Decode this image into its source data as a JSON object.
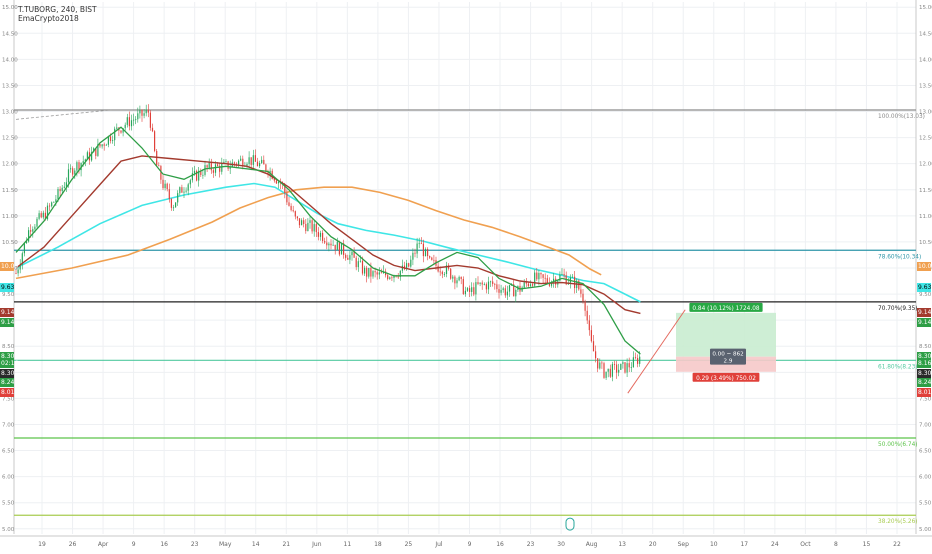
{
  "header": {
    "symbol_line": "T.TUBORG, 240, BIST",
    "indicator_name": "EmaCrypto2018"
  },
  "colors": {
    "background": "#ffffff",
    "grid": "#eef0f3",
    "candle_up": "#26a65b",
    "candle_down": "#e0403a",
    "ema_fast": "#2e9e46",
    "ema_mid": "#a33a2e",
    "ema_cyan": "#3fe6e6",
    "ema_orange": "#f0a050",
    "fib_line": "#8a8a8a",
    "fib_786": "#2d95a8",
    "fib_707": "#222222",
    "fib_618": "#52c9a0",
    "fib_500": "#5cc34a",
    "fib_382": "#a8cc50",
    "profit_zone": "#c9ecd0",
    "loss_zone": "#f6c9c9",
    "trend_line": "#e46a5f"
  },
  "chart_data": {
    "type": "candlestick",
    "title": "T.TUBORG, 240, BIST",
    "ylim": [
      4.9,
      15.1
    ],
    "y_axis_ticks": [
      "15.00",
      "14.50",
      "14.00",
      "13.50",
      "13.00",
      "12.50",
      "12.00",
      "11.50",
      "11.00",
      "10.50",
      "10.00",
      "9.50",
      "9.00",
      "8.50",
      "8.00",
      "7.50",
      "7.00",
      "6.50",
      "6.00",
      "5.50",
      "5.00"
    ],
    "x_axis_ticks": [
      "19",
      "26",
      "Apr",
      "9",
      "16",
      "23",
      "May",
      "14",
      "21",
      "Jun",
      "11",
      "18",
      "25",
      "Jul",
      "9",
      "16",
      "23",
      "30",
      "Aug",
      "13",
      "20",
      "Sep",
      "10",
      "17",
      "24",
      "Oct",
      "8",
      "15",
      "22"
    ],
    "ema_fast": [
      [
        0,
        10.3
      ],
      [
        20,
        10.9
      ],
      [
        40,
        11.7
      ],
      [
        60,
        12.4
      ],
      [
        75,
        12.7
      ],
      [
        90,
        12.3
      ],
      [
        105,
        11.8
      ],
      [
        120,
        11.7
      ],
      [
        135,
        11.9
      ],
      [
        150,
        11.95
      ],
      [
        165,
        11.9
      ],
      [
        180,
        11.85
      ],
      [
        195,
        11.5
      ],
      [
        210,
        11.0
      ],
      [
        225,
        10.6
      ],
      [
        240,
        10.35
      ],
      [
        255,
        10.0
      ],
      [
        270,
        9.85
      ],
      [
        285,
        9.85
      ],
      [
        300,
        10.1
      ],
      [
        315,
        10.3
      ],
      [
        330,
        10.2
      ],
      [
        345,
        9.8
      ],
      [
        360,
        9.6
      ],
      [
        375,
        9.65
      ],
      [
        390,
        9.8
      ],
      [
        405,
        9.7
      ],
      [
        420,
        9.3
      ],
      [
        435,
        8.6
      ],
      [
        446,
        8.35
      ]
    ],
    "ema_mid": [
      [
        0,
        10.0
      ],
      [
        20,
        10.4
      ],
      [
        40,
        11.0
      ],
      [
        60,
        11.6
      ],
      [
        75,
        12.05
      ],
      [
        90,
        12.15
      ],
      [
        110,
        12.1
      ],
      [
        130,
        12.05
      ],
      [
        150,
        12.0
      ],
      [
        165,
        11.95
      ],
      [
        180,
        11.8
      ],
      [
        195,
        11.55
      ],
      [
        210,
        11.2
      ],
      [
        225,
        10.85
      ],
      [
        240,
        10.55
      ],
      [
        255,
        10.25
      ],
      [
        270,
        10.05
      ],
      [
        285,
        9.95
      ],
      [
        300,
        10.0
      ],
      [
        315,
        10.05
      ],
      [
        330,
        10.0
      ],
      [
        345,
        9.85
      ],
      [
        360,
        9.75
      ],
      [
        375,
        9.7
      ],
      [
        390,
        9.72
      ],
      [
        405,
        9.68
      ],
      [
        420,
        9.5
      ],
      [
        435,
        9.2
      ],
      [
        446,
        9.13
      ]
    ],
    "ema_cyan": [
      [
        0,
        10.0
      ],
      [
        30,
        10.4
      ],
      [
        60,
        10.85
      ],
      [
        90,
        11.2
      ],
      [
        120,
        11.4
      ],
      [
        150,
        11.55
      ],
      [
        170,
        11.62
      ],
      [
        185,
        11.55
      ],
      [
        200,
        11.3
      ],
      [
        215,
        11.05
      ],
      [
        230,
        10.85
      ],
      [
        250,
        10.72
      ],
      [
        270,
        10.63
      ],
      [
        290,
        10.52
      ],
      [
        310,
        10.38
      ],
      [
        330,
        10.25
      ],
      [
        350,
        10.12
      ],
      [
        370,
        9.98
      ],
      [
        390,
        9.86
      ],
      [
        405,
        9.76
      ],
      [
        420,
        9.7
      ],
      [
        435,
        9.5
      ],
      [
        446,
        9.35
      ]
    ],
    "ema_orange": [
      [
        0,
        9.8
      ],
      [
        40,
        10.0
      ],
      [
        80,
        10.25
      ],
      [
        110,
        10.55
      ],
      [
        140,
        10.88
      ],
      [
        160,
        11.15
      ],
      [
        180,
        11.35
      ],
      [
        200,
        11.5
      ],
      [
        220,
        11.55
      ],
      [
        240,
        11.55
      ],
      [
        260,
        11.45
      ],
      [
        280,
        11.3
      ],
      [
        300,
        11.1
      ],
      [
        320,
        10.92
      ],
      [
        340,
        10.78
      ],
      [
        360,
        10.6
      ],
      [
        380,
        10.4
      ],
      [
        395,
        10.25
      ],
      [
        410,
        9.98
      ],
      [
        418,
        9.87
      ]
    ],
    "fibonacci": [
      {
        "level": "100.00%",
        "price": 13.03,
        "label": "100.00%(13.03)",
        "color_key": "fib_line"
      },
      {
        "level": "78.60%",
        "price": 10.34,
        "label": "78.60%(10.34)",
        "color_key": "fib_786"
      },
      {
        "level": "70.70%",
        "price": 9.35,
        "label": "70.70%(9.35)",
        "color_key": "fib_707"
      },
      {
        "level": "61.80%",
        "price": 8.23,
        "label": "61.80%(8.23)",
        "color_key": "fib_618"
      },
      {
        "level": "50.00%",
        "price": 6.74,
        "label": "50.00%(6.74)",
        "color_key": "fib_500"
      },
      {
        "level": "38.20%",
        "price": 5.26,
        "label": "38.20%(5.26)",
        "color_key": "fib_382"
      }
    ],
    "position": {
      "entry": 8.3,
      "target": 9.14,
      "stop": 8.01,
      "target_label": "0.84 (10.12%) 1724.08",
      "center_label_1": "0.00 ~ 862",
      "center_label_2": "2.9",
      "stop_label": "0.29 (3.49%) 750.02"
    },
    "price_badges_left": [
      {
        "text": "10.03",
        "price": 10.03,
        "bg": "#f0a050",
        "fg": "#ffffff"
      },
      {
        "text": "9.63",
        "price": 9.63,
        "bg": "#3fe6e6",
        "fg": "#000000"
      },
      {
        "text": "9.14",
        "price": 9.14,
        "bg": "#a33a2e",
        "fg": "#ffffff"
      },
      {
        "text": "9.14",
        "price": 8.96,
        "bg": "#2e9e46",
        "fg": "#ffffff"
      },
      {
        "text": "8.30",
        "price": 8.3,
        "bg": "#2e9e46",
        "fg": "#ffffff"
      },
      {
        "text": "02:16",
        "price": 8.16,
        "bg": "#2e9e46",
        "fg": "#ffffff"
      },
      {
        "text": "8.30",
        "price": 7.97,
        "bg": "#2a2a2a",
        "fg": "#ffffff"
      },
      {
        "text": "8.24",
        "price": 7.8,
        "bg": "#2e9e46",
        "fg": "#ffffff"
      },
      {
        "text": "8.01",
        "price": 7.62,
        "bg": "#e0403a",
        "fg": "#ffffff"
      }
    ],
    "price_badges_right": [
      {
        "text": "10.03",
        "price": 10.03,
        "bg": "#f0a050",
        "fg": "#ffffff"
      },
      {
        "text": "9.63",
        "price": 9.63,
        "bg": "#3fe6e6",
        "fg": "#000000"
      },
      {
        "text": "9.14",
        "price": 9.14,
        "bg": "#a33a2e",
        "fg": "#ffffff"
      },
      {
        "text": "9.14",
        "price": 8.96,
        "bg": "#2e9e46",
        "fg": "#ffffff"
      },
      {
        "text": "8.30",
        "price": 8.3,
        "bg": "#2e9e46",
        "fg": "#ffffff"
      },
      {
        "text": "8.16",
        "price": 8.16,
        "bg": "#2e9e46",
        "fg": "#ffffff"
      },
      {
        "text": "8.30",
        "price": 7.97,
        "bg": "#2a2a2a",
        "fg": "#ffffff"
      },
      {
        "text": "8.24",
        "price": 7.8,
        "bg": "#2e9e46",
        "fg": "#ffffff"
      },
      {
        "text": "8.01",
        "price": 7.62,
        "bg": "#e0403a",
        "fg": "#ffffff"
      }
    ],
    "candle_path": [
      [
        0,
        9.9
      ],
      [
        10,
        10.8
      ],
      [
        20,
        11.0
      ],
      [
        30,
        11.4
      ],
      [
        40,
        11.9
      ],
      [
        55,
        12.2
      ],
      [
        70,
        12.6
      ],
      [
        80,
        12.8
      ],
      [
        95,
        13.0
      ],
      [
        100,
        12.0
      ],
      [
        105,
        11.6
      ],
      [
        112,
        11.2
      ],
      [
        118,
        11.5
      ],
      [
        125,
        11.7
      ],
      [
        135,
        11.9
      ],
      [
        150,
        11.95
      ],
      [
        165,
        12.1
      ],
      [
        180,
        11.9
      ],
      [
        190,
        11.6
      ],
      [
        195,
        11.2
      ],
      [
        200,
        10.9
      ],
      [
        210,
        10.8
      ],
      [
        225,
        10.5
      ],
      [
        240,
        10.2
      ],
      [
        250,
        9.9
      ],
      [
        260,
        9.85
      ],
      [
        270,
        9.9
      ],
      [
        280,
        10.0
      ],
      [
        288,
        10.5
      ],
      [
        295,
        10.1
      ],
      [
        305,
        10.0
      ],
      [
        315,
        9.8
      ],
      [
        322,
        9.5
      ],
      [
        330,
        9.65
      ],
      [
        340,
        9.7
      ],
      [
        350,
        9.55
      ],
      [
        360,
        9.6
      ],
      [
        370,
        9.8
      ],
      [
        380,
        9.75
      ],
      [
        390,
        9.85
      ],
      [
        400,
        9.7
      ],
      [
        406,
        9.4
      ],
      [
        410,
        8.6
      ],
      [
        415,
        8.2
      ],
      [
        420,
        8.0
      ],
      [
        428,
        8.05
      ],
      [
        436,
        8.1
      ],
      [
        442,
        8.2
      ],
      [
        446,
        8.3
      ]
    ],
    "trend_line": [
      [
        437,
        7.6
      ],
      [
        478,
        9.2
      ]
    ]
  }
}
